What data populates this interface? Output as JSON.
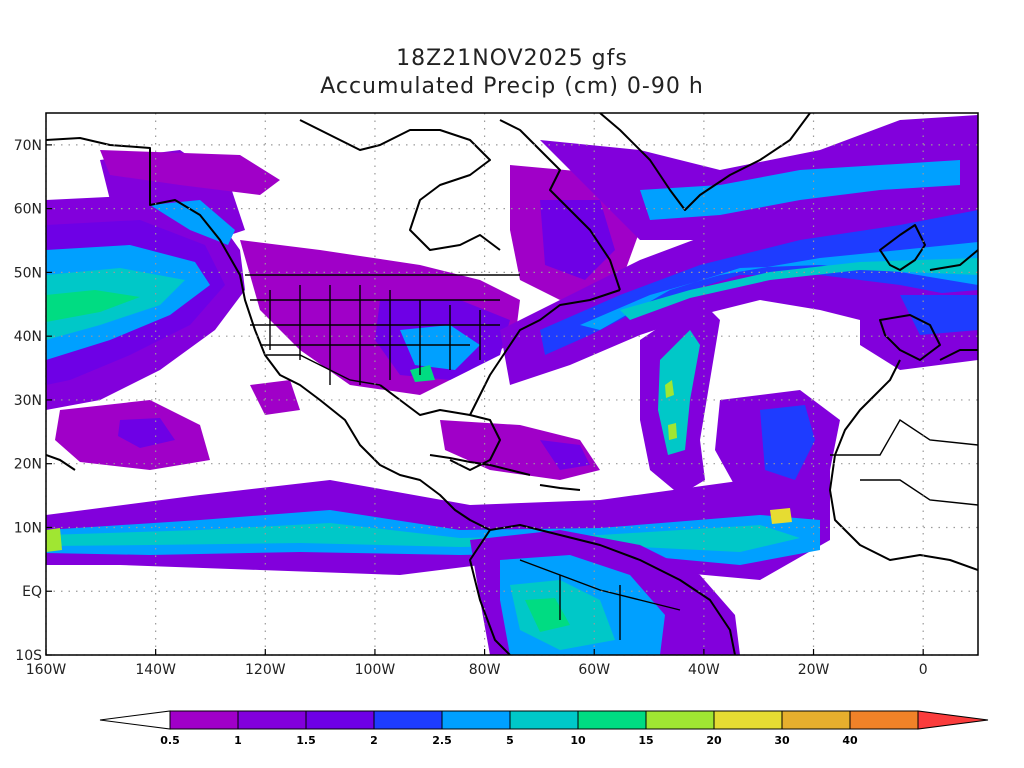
{
  "title": "18Z21NOV2025 gfs",
  "subtitle": "Accumulated Precip (cm) 0-90 h",
  "map": {
    "lon_range": [
      -160,
      10
    ],
    "lat_range": [
      -10,
      75
    ],
    "lat_ticks": [
      {
        "lat": 70,
        "label": "70N"
      },
      {
        "lat": 60,
        "label": "60N"
      },
      {
        "lat": 50,
        "label": "50N"
      },
      {
        "lat": 40,
        "label": "40N"
      },
      {
        "lat": 30,
        "label": "30N"
      },
      {
        "lat": 20,
        "label": "20N"
      },
      {
        "lat": 10,
        "label": "10N"
      },
      {
        "lat": 0,
        "label": "EQ"
      },
      {
        "lat": -10,
        "label": "10S"
      }
    ],
    "lon_ticks": [
      {
        "lon": -160,
        "label": "160W"
      },
      {
        "lon": -140,
        "label": "140W"
      },
      {
        "lon": -120,
        "label": "120W"
      },
      {
        "lon": -100,
        "label": "100W"
      },
      {
        "lon": -80,
        "label": "80W"
      },
      {
        "lon": -60,
        "label": "60W"
      },
      {
        "lon": -40,
        "label": "40W"
      },
      {
        "lon": -20,
        "label": "20W"
      },
      {
        "lon": 0,
        "label": "0"
      }
    ],
    "grid": true
  },
  "colorbar": {
    "levels": [
      "0.5",
      "1",
      "1.5",
      "2",
      "2.5",
      "5",
      "10",
      "15",
      "20",
      "30",
      "40"
    ],
    "colors": [
      "#ffffff",
      "#a000c8",
      "#8200dc",
      "#6e00e6",
      "#1e3cff",
      "#00a0ff",
      "#00c8c8",
      "#00dc82",
      "#a0e632",
      "#e6dc32",
      "#e6af2d",
      "#f08228",
      "#fa3c3c"
    ]
  }
}
